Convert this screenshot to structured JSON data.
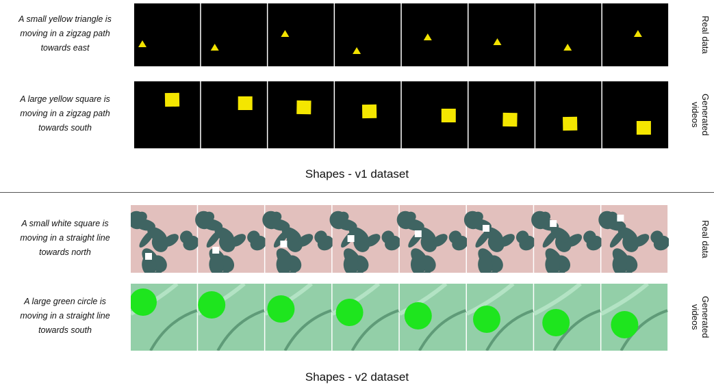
{
  "sections": [
    {
      "title": "Shapes - v1 dataset",
      "rows": [
        {
          "caption": [
            "A small yellow triangle is",
            "moving in a zigzag path",
            "towards east"
          ],
          "label": "Real data"
        },
        {
          "caption": [
            "A large yellow square is",
            "moving in a zigzag path",
            "towards south"
          ],
          "label": "Generated videos"
        }
      ]
    },
    {
      "title": "Shapes - v2 dataset",
      "rows": [
        {
          "caption": [
            "A small white square is",
            "moving in a straight line",
            "towards north"
          ],
          "label": "Real data"
        },
        {
          "caption": [
            "A large green circle is",
            "moving in a straight line",
            "towards south"
          ],
          "label": "Generated videos"
        }
      ]
    }
  ]
}
